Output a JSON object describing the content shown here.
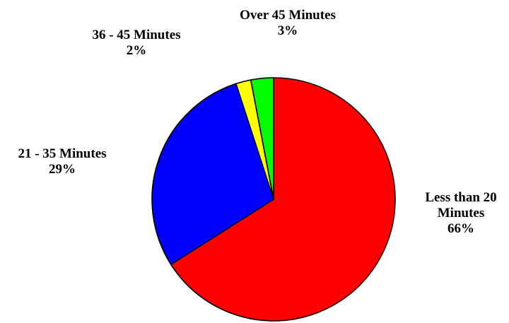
{
  "chart_data": {
    "type": "pie",
    "title": "",
    "start_angle_deg": 0,
    "direction": "clockwise",
    "slices": [
      {
        "label_lines": [
          "Less than 20",
          "Minutes"
        ],
        "label": "Less than 20 Minutes",
        "value": 66,
        "value_label": "66%",
        "color": "#ff0000"
      },
      {
        "label_lines": [
          "21 - 35 Minutes"
        ],
        "label": "21 - 35 Minutes",
        "value": 29,
        "value_label": "29%",
        "color": "#0000ff"
      },
      {
        "label_lines": [
          "36 - 45 Minutes"
        ],
        "label": "36 - 45 Minutes",
        "value": 2,
        "value_label": "2%",
        "color": "#ffff00"
      },
      {
        "label_lines": [
          "Over 45 Minutes"
        ],
        "label": "Over 45 Minutes",
        "value": 3,
        "value_label": "3%",
        "color": "#00ff00"
      }
    ]
  }
}
